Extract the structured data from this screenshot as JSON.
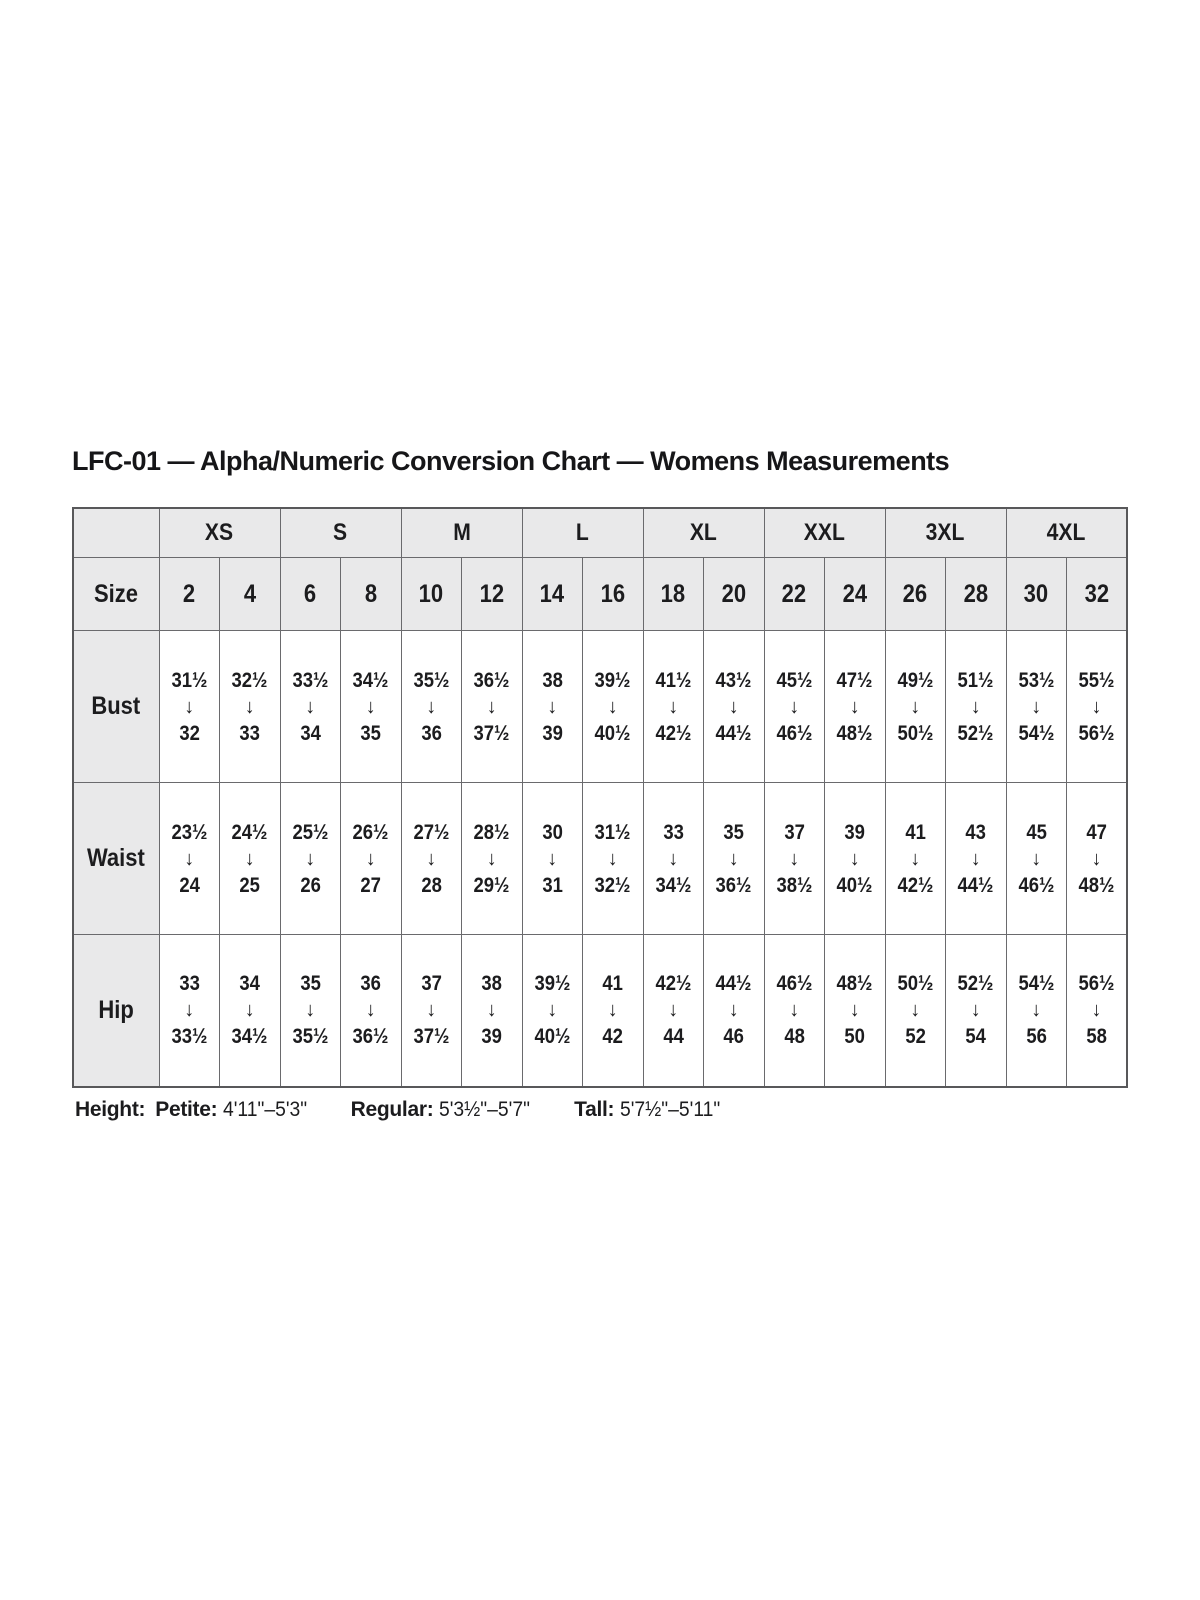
{
  "title": "LFC-01 — Alpha/Numeric Conversion Chart — Womens Measurements",
  "table": {
    "corner_label": "",
    "alpha_sizes": [
      "XS",
      "S",
      "M",
      "L",
      "XL",
      "XXL",
      "3XL",
      "4XL"
    ],
    "size_row_label": "Size",
    "numeric_sizes": [
      "2",
      "4",
      "6",
      "8",
      "10",
      "12",
      "14",
      "16",
      "18",
      "20",
      "22",
      "24",
      "26",
      "28",
      "30",
      "32"
    ],
    "arrow_icon": "↓",
    "measurement_rows": [
      {
        "label": "Bust",
        "ranges": [
          [
            "31½",
            "32"
          ],
          [
            "32½",
            "33"
          ],
          [
            "33½",
            "34"
          ],
          [
            "34½",
            "35"
          ],
          [
            "35½",
            "36"
          ],
          [
            "36½",
            "37½"
          ],
          [
            "38",
            "39"
          ],
          [
            "39½",
            "40½"
          ],
          [
            "41½",
            "42½"
          ],
          [
            "43½",
            "44½"
          ],
          [
            "45½",
            "46½"
          ],
          [
            "47½",
            "48½"
          ],
          [
            "49½",
            "50½"
          ],
          [
            "51½",
            "52½"
          ],
          [
            "53½",
            "54½"
          ],
          [
            "55½",
            "56½"
          ]
        ]
      },
      {
        "label": "Waist",
        "ranges": [
          [
            "23½",
            "24"
          ],
          [
            "24½",
            "25"
          ],
          [
            "25½",
            "26"
          ],
          [
            "26½",
            "27"
          ],
          [
            "27½",
            "28"
          ],
          [
            "28½",
            "29½"
          ],
          [
            "30",
            "31"
          ],
          [
            "31½",
            "32½"
          ],
          [
            "33",
            "34½"
          ],
          [
            "35",
            "36½"
          ],
          [
            "37",
            "38½"
          ],
          [
            "39",
            "40½"
          ],
          [
            "41",
            "42½"
          ],
          [
            "43",
            "44½"
          ],
          [
            "45",
            "46½"
          ],
          [
            "47",
            "48½"
          ]
        ]
      },
      {
        "label": "Hip",
        "ranges": [
          [
            "33",
            "33½"
          ],
          [
            "34",
            "34½"
          ],
          [
            "35",
            "35½"
          ],
          [
            "36",
            "36½"
          ],
          [
            "37",
            "37½"
          ],
          [
            "38",
            "39"
          ],
          [
            "39½",
            "40½"
          ],
          [
            "41",
            "42"
          ],
          [
            "42½",
            "44"
          ],
          [
            "44½",
            "46"
          ],
          [
            "46½",
            "48"
          ],
          [
            "48½",
            "50"
          ],
          [
            "50½",
            "52"
          ],
          [
            "52½",
            "54"
          ],
          [
            "54½",
            "56"
          ],
          [
            "56½",
            "58"
          ]
        ]
      }
    ]
  },
  "footer": {
    "height_label": "Height:",
    "entries": [
      {
        "label": "Petite:",
        "value": "4'11\"–5'3\""
      },
      {
        "label": "Regular:",
        "value": "5'3½\"–5'7\""
      },
      {
        "label": "Tall:",
        "value": "5'7½\"–5'11\""
      }
    ]
  },
  "colors": {
    "header_bg": "#e9e9ea",
    "border": "#6a6a6d",
    "text": "#1c1c1e",
    "background": "#ffffff"
  }
}
